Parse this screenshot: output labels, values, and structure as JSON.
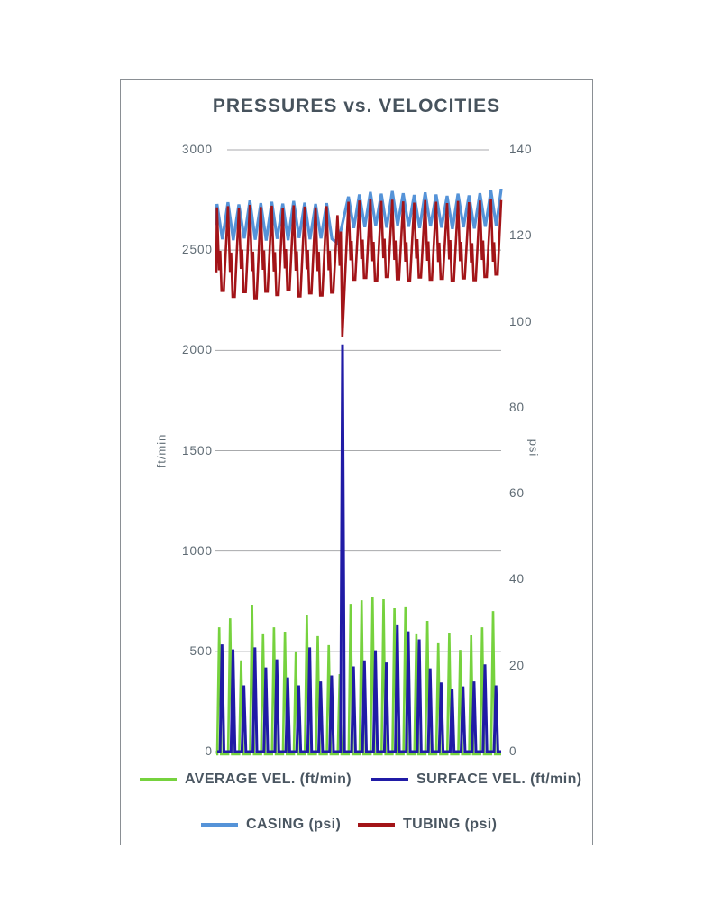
{
  "title": "PRESSURES vs. VELOCITIES",
  "axes": {
    "left": {
      "title": "ft/min",
      "ticks": [
        "3000",
        "2500",
        "2000",
        "1500",
        "1000",
        "500",
        "0"
      ]
    },
    "right": {
      "title": "psi",
      "ticks": [
        "140",
        "120",
        "100",
        "80",
        "60",
        "40",
        "20",
        "0"
      ]
    }
  },
  "legend": {
    "items": [
      {
        "id": "average-vel",
        "label": "AVERAGE VEL. (ft/min)",
        "color": "#76d23e"
      },
      {
        "id": "surface-vel",
        "label": "SURFACE VEL. (ft/min)",
        "color": "#201ba6"
      },
      {
        "id": "casing",
        "label": "CASING (psi)",
        "color": "#5593d8"
      },
      {
        "id": "tubing",
        "label": "TUBING (psi)",
        "color": "#a31418"
      }
    ]
  },
  "colors": {
    "frame": "#8a8f94",
    "grid": "#a8aaac",
    "tick_text": "#5e6a73",
    "title_text": "#47535d",
    "legend_text": "#4a5661"
  },
  "chart_data": {
    "type": "line",
    "title": "PRESSURES vs. VELOCITIES",
    "ylabel_left": "ft/min",
    "ylabel_right": "psi",
    "ylim_left": [
      0,
      3000
    ],
    "ylim_right": [
      0,
      140
    ],
    "left_tick_step": 500,
    "right_tick_step": 20,
    "grid": "horizontal-only",
    "legend_position": "bottom",
    "cycles": 26,
    "anomaly_index": 11,
    "series": [
      {
        "name": "AVERAGE VEL. (ft/min)",
        "axis": "left",
        "color": "#76d23e",
        "shape": "spike",
        "peaks": [
          620,
          665,
          455,
          733,
          585,
          620,
          598,
          495,
          679,
          576,
          531,
          387,
          737,
          755,
          769,
          760,
          715,
          720,
          585,
          652,
          540,
          589,
          508,
          580,
          620,
          701
        ]
      },
      {
        "name": "SURFACE VEL. (ft/min)",
        "axis": "left",
        "color": "#201ba6",
        "shape": "spike",
        "peaks": [
          535,
          510,
          330,
          520,
          420,
          460,
          370,
          330,
          520,
          350,
          380,
          2030,
          425,
          455,
          505,
          445,
          630,
          600,
          560,
          415,
          345,
          310,
          325,
          350,
          435,
          330
        ],
        "anomaly_peak": 2030
      },
      {
        "name": "CASING (psi)",
        "axis": "right",
        "color": "#5593d8",
        "shape": "zigzag",
        "peaks": [
          127.4,
          127.8,
          127.3,
          128.2,
          127.6,
          127.9,
          127.5,
          128.1,
          127.7,
          127.4,
          127.6,
          121.5,
          129.1,
          129.6,
          130.2,
          129.8,
          130.4,
          129.9,
          129.5,
          130.1,
          129.6,
          129.3,
          129.8,
          129.4,
          129.9,
          130.5
        ],
        "troughs": [
          119.2,
          119.0,
          119.4,
          119.1,
          118.9,
          119.3,
          119.0,
          119.5,
          119.2,
          119.4,
          119.3,
          118.2,
          121.8,
          122.0,
          122.3,
          121.9,
          122.4,
          122.1,
          121.8,
          122.2,
          121.9,
          121.6,
          122.0,
          121.7,
          122.1,
          122.3
        ],
        "anomaly_min": 118.2,
        "end_value": 130.8
      },
      {
        "name": "TUBING (psi)",
        "axis": "right",
        "color": "#a31418",
        "shape": "double-trough",
        "peaks": [
          126.6,
          126.9,
          126.4,
          127.2,
          126.7,
          127.0,
          126.5,
          127.1,
          126.8,
          126.6,
          126.9,
          124.8,
          127.9,
          128.2,
          128.6,
          128.1,
          128.4,
          128.0,
          127.7,
          128.3,
          127.9,
          127.6,
          128.1,
          127.8,
          128.2,
          128.5
        ],
        "troughs_shallow": [
          112.0,
          111.6,
          112.3,
          111.8,
          112.1,
          111.7,
          112.4,
          111.9,
          112.2,
          111.8,
          112.0,
          113.0,
          114.3,
          114.6,
          114.1,
          114.8,
          114.4,
          114.0,
          114.7,
          114.2,
          113.9,
          114.5,
          114.1,
          113.8,
          114.4,
          114.0
        ],
        "troughs_deep": [
          107.2,
          105.8,
          106.9,
          105.5,
          107.0,
          106.2,
          107.4,
          105.9,
          106.6,
          106.1,
          106.8,
          96.4,
          109.8,
          110.2,
          109.5,
          110.4,
          109.9,
          109.6,
          110.3,
          109.8,
          110.0,
          109.5,
          110.1,
          109.7,
          110.4,
          111.0
        ],
        "anomaly_min": 96.4,
        "end_value": 128.3
      }
    ]
  }
}
